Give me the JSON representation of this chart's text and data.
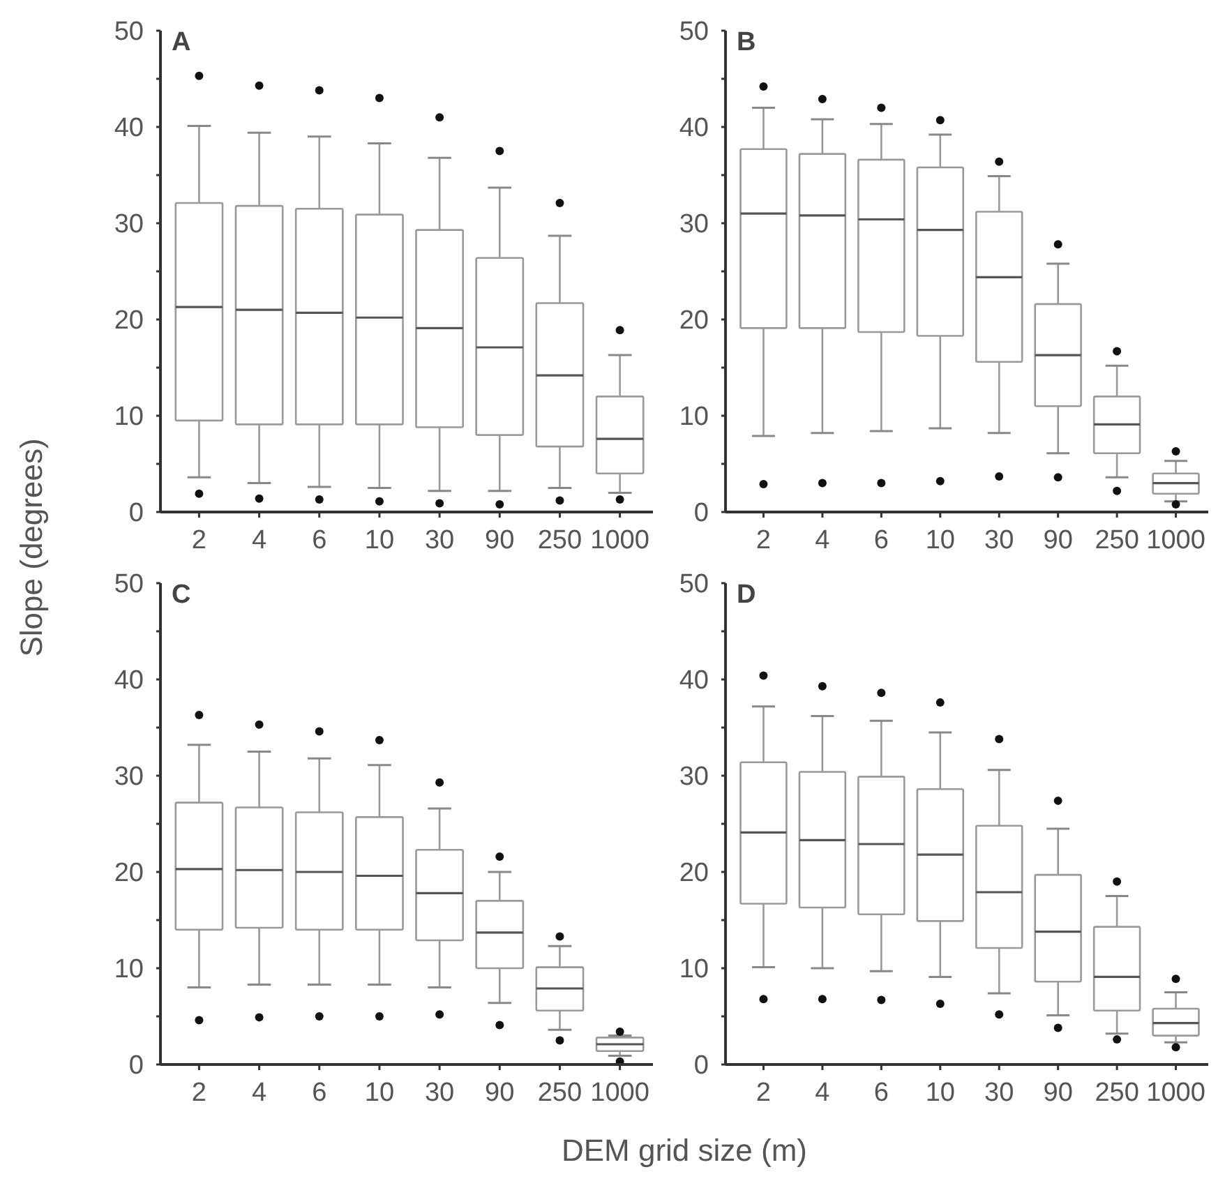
{
  "chart_data": [
    {
      "type": "box",
      "title": "A",
      "ylabel": "Slope (degrees)",
      "categories": [
        "2",
        "4",
        "6",
        "10",
        "30",
        "90",
        "250",
        "1000"
      ],
      "ylim": [
        0,
        50
      ],
      "yticks": [
        0,
        {
          "value": 5,
          "label": null
        },
        10,
        {
          "value": 15,
          "label": null
        },
        20,
        {
          "value": 25,
          "label": null
        },
        30,
        {
          "value": 35,
          "label": null
        },
        40,
        {
          "value": 45,
          "label": null
        },
        50
      ],
      "boxes": [
        {
          "low": 3.6,
          "q1": 9.5,
          "median": 21.3,
          "q3": 32.1,
          "high": 40.1,
          "outliers": [
            1.9,
            45.3
          ]
        },
        {
          "low": 3.0,
          "q1": 9.1,
          "median": 21.0,
          "q3": 31.8,
          "high": 39.4,
          "outliers": [
            1.4,
            44.3
          ]
        },
        {
          "low": 2.6,
          "q1": 9.1,
          "median": 20.7,
          "q3": 31.5,
          "high": 39.0,
          "outliers": [
            1.3,
            43.8
          ]
        },
        {
          "low": 2.5,
          "q1": 9.1,
          "median": 20.2,
          "q3": 30.9,
          "high": 38.3,
          "outliers": [
            1.1,
            43.0
          ]
        },
        {
          "low": 2.2,
          "q1": 8.8,
          "median": 19.1,
          "q3": 29.3,
          "high": 36.8,
          "outliers": [
            0.9,
            41.0
          ]
        },
        {
          "low": 2.2,
          "q1": 8.0,
          "median": 17.1,
          "q3": 26.4,
          "high": 33.7,
          "outliers": [
            0.8,
            37.5
          ]
        },
        {
          "low": 2.5,
          "q1": 6.8,
          "median": 14.2,
          "q3": 21.7,
          "high": 28.7,
          "outliers": [
            1.2,
            32.1
          ]
        },
        {
          "low": 2.0,
          "q1": 4.0,
          "median": 7.6,
          "q3": 12.0,
          "high": 16.3,
          "outliers": [
            1.3,
            18.9
          ]
        }
      ]
    },
    {
      "type": "box",
      "title": "B",
      "categories": [
        "2",
        "4",
        "6",
        "10",
        "30",
        "90",
        "250",
        "1000"
      ],
      "ylim": [
        0,
        50
      ],
      "yticks": [
        0,
        {
          "value": 5,
          "label": null
        },
        10,
        {
          "value": 15,
          "label": null
        },
        20,
        {
          "value": 25,
          "label": null
        },
        30,
        {
          "value": 35,
          "label": null
        },
        40,
        {
          "value": 45,
          "label": null
        },
        50
      ],
      "boxes": [
        {
          "low": 7.9,
          "q1": 19.1,
          "median": 31.0,
          "q3": 37.7,
          "high": 42.0,
          "outliers": [
            2.9,
            44.2
          ]
        },
        {
          "low": 8.2,
          "q1": 19.1,
          "median": 30.8,
          "q3": 37.2,
          "high": 40.8,
          "outliers": [
            3.0,
            42.9
          ]
        },
        {
          "low": 8.4,
          "q1": 18.7,
          "median": 30.4,
          "q3": 36.6,
          "high": 40.3,
          "outliers": [
            3.0,
            42.0
          ]
        },
        {
          "low": 8.7,
          "q1": 18.3,
          "median": 29.3,
          "q3": 35.8,
          "high": 39.2,
          "outliers": [
            3.2,
            40.7
          ]
        },
        {
          "low": 8.2,
          "q1": 15.6,
          "median": 24.4,
          "q3": 31.2,
          "high": 34.9,
          "outliers": [
            3.7,
            36.4
          ]
        },
        {
          "low": 6.1,
          "q1": 11.0,
          "median": 16.3,
          "q3": 21.6,
          "high": 25.8,
          "outliers": [
            3.6,
            27.8
          ]
        },
        {
          "low": 3.6,
          "q1": 6.1,
          "median": 9.1,
          "q3": 12.0,
          "high": 15.2,
          "outliers": [
            2.2,
            16.7
          ]
        },
        {
          "low": 1.1,
          "q1": 1.9,
          "median": 3.0,
          "q3": 4.0,
          "high": 5.3,
          "outliers": [
            0.8,
            6.3
          ]
        }
      ]
    },
    {
      "type": "box",
      "title": "C",
      "xlabel": "DEM grid size (m)",
      "categories": [
        "2",
        "4",
        "6",
        "10",
        "30",
        "90",
        "250",
        "1000"
      ],
      "ylim": [
        0,
        50
      ],
      "yticks": [
        0,
        {
          "value": 5,
          "label": null
        },
        10,
        {
          "value": 15,
          "label": null
        },
        20,
        {
          "value": 25,
          "label": null
        },
        30,
        {
          "value": 35,
          "label": null
        },
        40,
        {
          "value": 45,
          "label": null
        },
        50
      ],
      "boxes": [
        {
          "low": 8.0,
          "q1": 14.0,
          "median": 20.3,
          "q3": 27.2,
          "high": 33.2,
          "outliers": [
            4.6,
            36.3
          ]
        },
        {
          "low": 8.3,
          "q1": 14.2,
          "median": 20.2,
          "q3": 26.7,
          "high": 32.5,
          "outliers": [
            4.9,
            35.3
          ]
        },
        {
          "low": 8.3,
          "q1": 14.0,
          "median": 20.0,
          "q3": 26.2,
          "high": 31.8,
          "outliers": [
            5.0,
            34.6
          ]
        },
        {
          "low": 8.3,
          "q1": 14.0,
          "median": 19.6,
          "q3": 25.7,
          "high": 31.1,
          "outliers": [
            5.0,
            33.7
          ]
        },
        {
          "low": 8.0,
          "q1": 12.9,
          "median": 17.8,
          "q3": 22.3,
          "high": 26.6,
          "outliers": [
            5.2,
            29.3
          ]
        },
        {
          "low": 6.4,
          "q1": 10.0,
          "median": 13.7,
          "q3": 17.0,
          "high": 20.0,
          "outliers": [
            4.1,
            21.6
          ]
        },
        {
          "low": 3.6,
          "q1": 5.6,
          "median": 7.9,
          "q3": 10.1,
          "high": 12.3,
          "outliers": [
            2.5,
            13.3
          ]
        },
        {
          "low": 0.9,
          "q1": 1.4,
          "median": 2.1,
          "q3": 2.8,
          "high": 3.0,
          "outliers": [
            0.3,
            3.4
          ]
        }
      ]
    },
    {
      "type": "box",
      "title": "D",
      "categories": [
        "2",
        "4",
        "6",
        "10",
        "30",
        "90",
        "250",
        "1000"
      ],
      "ylim": [
        0,
        50
      ],
      "yticks": [
        0,
        {
          "value": 5,
          "label": null
        },
        10,
        {
          "value": 15,
          "label": null
        },
        20,
        {
          "value": 25,
          "label": null
        },
        30,
        {
          "value": 35,
          "label": null
        },
        40,
        {
          "value": 45,
          "label": null
        },
        50
      ],
      "boxes": [
        {
          "low": 10.1,
          "q1": 16.7,
          "median": 24.1,
          "q3": 31.4,
          "high": 37.2,
          "outliers": [
            6.8,
            40.4
          ]
        },
        {
          "low": 10.0,
          "q1": 16.3,
          "median": 23.3,
          "q3": 30.4,
          "high": 36.2,
          "outliers": [
            6.8,
            39.3
          ]
        },
        {
          "low": 9.7,
          "q1": 15.6,
          "median": 22.9,
          "q3": 29.9,
          "high": 35.7,
          "outliers": [
            6.7,
            38.6
          ]
        },
        {
          "low": 9.1,
          "q1": 14.9,
          "median": 21.8,
          "q3": 28.6,
          "high": 34.5,
          "outliers": [
            6.3,
            37.6
          ]
        },
        {
          "low": 7.4,
          "q1": 12.1,
          "median": 17.9,
          "q3": 24.8,
          "high": 30.6,
          "outliers": [
            5.2,
            33.8
          ]
        },
        {
          "low": 5.1,
          "q1": 8.6,
          "median": 13.8,
          "q3": 19.7,
          "high": 24.5,
          "outliers": [
            3.8,
            27.4
          ]
        },
        {
          "low": 3.2,
          "q1": 5.6,
          "median": 9.1,
          "q3": 14.3,
          "high": 17.5,
          "outliers": [
            2.6,
            19.0
          ]
        },
        {
          "low": 2.3,
          "q1": 3.0,
          "median": 4.3,
          "q3": 5.8,
          "high": 7.5,
          "outliers": [
            1.8,
            8.9
          ]
        }
      ]
    }
  ]
}
